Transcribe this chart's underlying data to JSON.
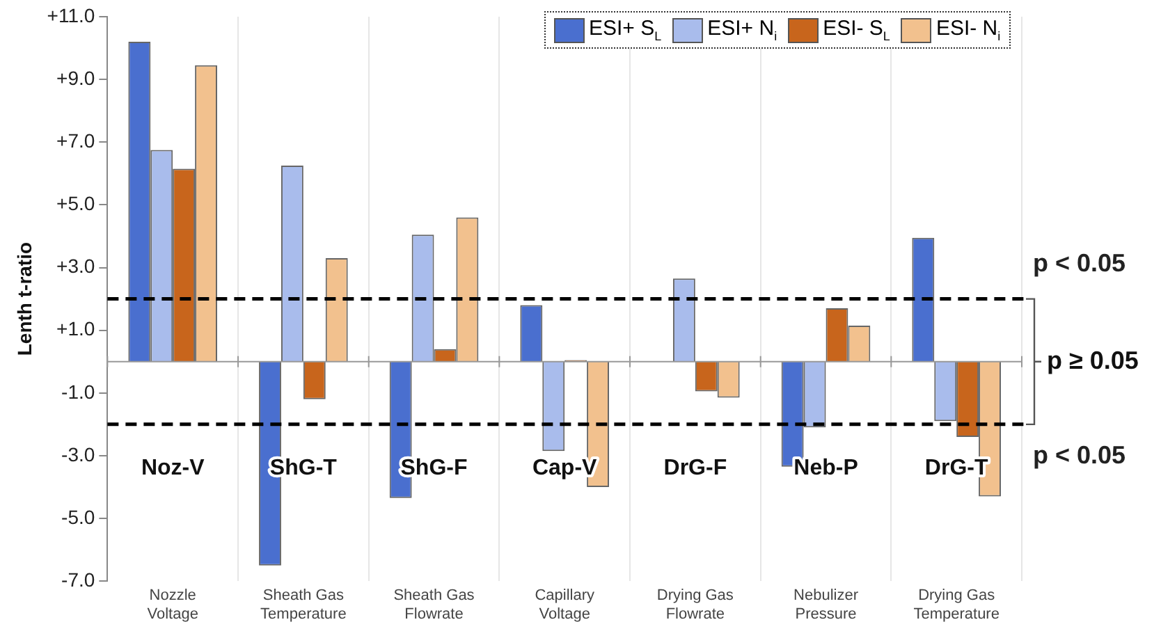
{
  "chart_data": {
    "type": "bar",
    "categories": [
      "Nozzle Voltage",
      "Sheath Gas Temperature",
      "Sheath Gas Flowrate",
      "Capillary Voltage",
      "Drying Gas Flowrate",
      "Nebulizer Pressure",
      "Drying Gas Temperature"
    ],
    "series": [
      {
        "name": "ESI+ S$_{L}$",
        "color": "#4a6fcf",
        "values": [
          10.2,
          -6.5,
          -4.35,
          1.8,
          0,
          -3.35,
          3.95
        ]
      },
      {
        "name": "ESI+ N$_{i}$",
        "color": "#a9bcec",
        "values": [
          6.75,
          6.25,
          4.05,
          -2.85,
          2.65,
          -2.1,
          -1.9
        ]
      },
      {
        "name": "ESI- S$_{L}$",
        "color": "#c8651c",
        "values": [
          6.15,
          -1.2,
          0.4,
          0.05,
          -0.95,
          1.7,
          -2.4
        ]
      },
      {
        "name": "ESI- N$_{i}$",
        "color": "#f2c18e",
        "values": [
          9.45,
          3.3,
          4.6,
          -4.0,
          -1.15,
          1.15,
          -4.3
        ]
      }
    ],
    "ylabel": "Lenth t-ratio",
    "ylim": [
      -7,
      11
    ],
    "yticks": [
      {
        "value": -7,
        "label": "-7.0"
      },
      {
        "value": -5,
        "label": "-5.0"
      },
      {
        "value": -3,
        "label": "-3.0"
      },
      {
        "value": -1,
        "label": "-1.0"
      },
      {
        "value": 1,
        "label": "+1.0"
      },
      {
        "value": 3,
        "label": "+3.0"
      },
      {
        "value": 5,
        "label": "+5.0"
      },
      {
        "value": 7,
        "label": "+7.0"
      },
      {
        "value": 9,
        "label": "+9.0"
      },
      {
        "value": 11,
        "label": "+11.0"
      }
    ],
    "ref_lines": [
      {
        "axis": "y",
        "value": 2,
        "label": "p < 0.05",
        "color": "#000000",
        "line_style": "dashed"
      },
      {
        "axis": "y",
        "value": -2,
        "label": "p < 0.05",
        "color": "#000000",
        "line_style": "dashed"
      }
    ],
    "annotations": [
      "Noz-V",
      "ShG-T",
      "ShG-F",
      "Cap-V",
      "DrG-F",
      "Neb-P",
      "DrG-T",
      "p ≥ 0.05"
    ],
    "grid": "x",
    "legend": "top right"
  }
}
